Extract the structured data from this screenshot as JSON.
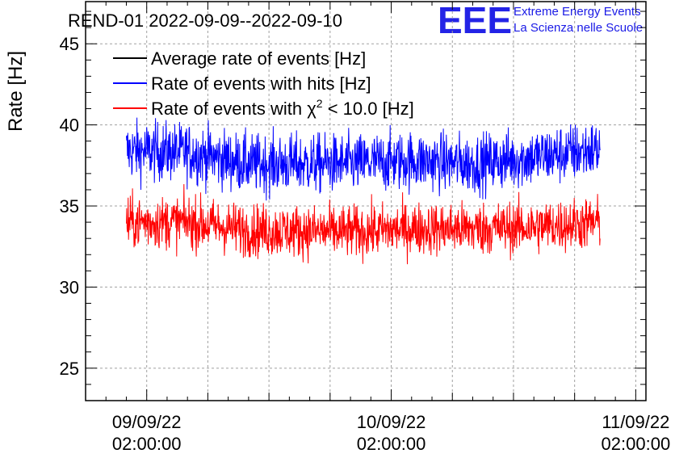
{
  "chart_data": {
    "type": "line",
    "title": "REND-01 2022-09-09--2022-09-10",
    "ylabel": "Rate [Hz]",
    "xlabel": "",
    "ylim": [
      23,
      47.6
    ],
    "yticks": [
      25,
      30,
      35,
      40,
      45
    ],
    "x_tick_labels": [
      {
        "date": "09/09/22",
        "time": "02:00:00",
        "t": 0
      },
      {
        "date": "10/09/22",
        "time": "02:00:00",
        "t": 24
      },
      {
        "date": "11/09/22",
        "time": "02:00:00",
        "t": 48
      }
    ],
    "xlim_hours": [
      -6,
      49
    ],
    "data_range_hours": [
      -2,
      44.5
    ],
    "grid": true,
    "legend": {
      "placement": "top-left",
      "entries": [
        {
          "label": "Average rate of events [Hz]",
          "color": "#000000"
        },
        {
          "label": "Rate of events with hits [Hz]",
          "color": "#0000ff"
        },
        {
          "label_pre": "Rate of events with ",
          "label_chi": "χ",
          "label_sup": "2",
          "label_post": " < 10.0 [Hz]",
          "color": "#ff0000"
        }
      ]
    },
    "series": [
      {
        "color": "#0000ff",
        "mean": 38.0,
        "noise": 0.9,
        "trend": [
          [
            -2,
            38.4
          ],
          [
            4,
            38.3
          ],
          [
            10,
            37.6
          ],
          [
            20,
            37.6
          ],
          [
            26,
            37.8
          ],
          [
            32,
            37.6
          ],
          [
            38,
            38.0
          ],
          [
            44.5,
            38.5
          ]
        ]
      },
      {
        "color": "#ff0000",
        "mean": 33.7,
        "noise": 0.8,
        "trend": [
          [
            -2,
            34.0
          ],
          [
            4,
            34.0
          ],
          [
            10,
            33.5
          ],
          [
            20,
            33.4
          ],
          [
            26,
            33.6
          ],
          [
            32,
            33.6
          ],
          [
            38,
            33.7
          ],
          [
            44.5,
            34.0
          ]
        ]
      }
    ]
  },
  "logo": {
    "text": "EEE",
    "line1": "Extreme Energy Events",
    "line2": "La Scienza nelle Scuole",
    "color": "#2323e6"
  }
}
